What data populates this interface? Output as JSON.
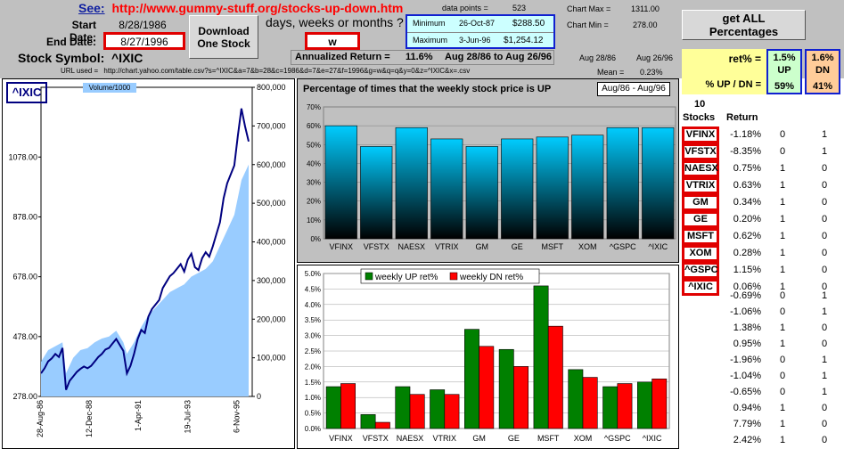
{
  "header": {
    "see_label": "See:",
    "see_link": "http://www.gummy-stuff.org/stocks-up-down.htm",
    "start_label": "Start Date:",
    "start_value": "8/28/1986",
    "end_label": "End Date:",
    "end_value": "8/27/1996",
    "symbol_label": "Stock Symbol:",
    "symbol_value": "^IXIC",
    "download_button": "Download One Stock",
    "period_prompt": "days, weeks or months ?",
    "period_value": "w",
    "data_points_label": "data points =",
    "data_points_value": "523",
    "min_label": "Minimum",
    "min_date": "26-Oct-87",
    "min_value": "$288.50",
    "max_label": "Maximum",
    "max_date": "3-Jun-96",
    "max_value": "$1,254.12",
    "chart_max_label": "Chart Max =",
    "chart_max_value": "1311.00",
    "chart_min_label": "Chart Min =",
    "chart_min_value": "278.00",
    "get_all_button": "get ALL Percentages",
    "annualized_label": "Annualized Return =",
    "annualized_value": "11.6%",
    "annualized_range": "Aug 28/86 to Aug 26/96",
    "col_aug86": "Aug 28/86",
    "col_aug96": "Aug 26/96",
    "mean_label": "Mean =",
    "mean_value": "0.23%",
    "url_label": "URL used =",
    "url_value": "http://chart.yahoo.com/table.csv?s=^IXIC&a=7&b=28&c=1986&d=7&e=27&f=1996&g=w&q=q&y=0&z=^IXIC&x=.csv"
  },
  "summary": {
    "ret_label": "ret% =",
    "up_pct": "1.5%",
    "up_word": "UP",
    "dn_pct": "1.6%",
    "dn_word": "DN",
    "updn_label": "% UP / DN =",
    "up_share": "59%",
    "dn_share": "41%",
    "stocks_count": "10",
    "stocks_header": "Stocks",
    "return_header": "Return"
  },
  "stocks": [
    {
      "name": "VFINX",
      "ret": "-1.18%",
      "up": "0",
      "dn": "1"
    },
    {
      "name": "VFSTX",
      "ret": "-8.35%",
      "up": "0",
      "dn": "1"
    },
    {
      "name": "NAESX",
      "ret": "0.75%",
      "up": "1",
      "dn": "0"
    },
    {
      "name": "VTRIX",
      "ret": "0.63%",
      "up": "1",
      "dn": "0"
    },
    {
      "name": "GM",
      "ret": "0.34%",
      "up": "1",
      "dn": "0"
    },
    {
      "name": "GE",
      "ret": "0.20%",
      "up": "1",
      "dn": "0"
    },
    {
      "name": "MSFT",
      "ret": "0.62%",
      "up": "1",
      "dn": "0"
    },
    {
      "name": "XOM",
      "ret": "0.28%",
      "up": "1",
      "dn": "0"
    },
    {
      "name": "^GSPC",
      "ret": "1.15%",
      "up": "1",
      "dn": "0"
    },
    {
      "name": "^IXIC",
      "ret": "0.06%",
      "up": "1",
      "dn": "0"
    }
  ],
  "extra_rows": [
    {
      "ret": "-0.69%",
      "up": "0",
      "dn": "1"
    },
    {
      "ret": "-1.06%",
      "up": "0",
      "dn": "1"
    },
    {
      "ret": "1.38%",
      "up": "1",
      "dn": "0"
    },
    {
      "ret": "0.95%",
      "up": "1",
      "dn": "0"
    },
    {
      "ret": "-1.96%",
      "up": "0",
      "dn": "1"
    },
    {
      "ret": "-1.04%",
      "up": "0",
      "dn": "1"
    },
    {
      "ret": "-0.65%",
      "up": "0",
      "dn": "1"
    },
    {
      "ret": "0.94%",
      "up": "1",
      "dn": "0"
    },
    {
      "ret": "7.79%",
      "up": "1",
      "dn": "0"
    },
    {
      "ret": "2.42%",
      "up": "1",
      "dn": "0"
    }
  ],
  "chart_data": [
    {
      "type": "line",
      "title": "^IXIC",
      "legend": "Volume/1000",
      "left_axis": [
        278.0,
        478.0,
        678.0,
        878.0,
        1078.0
      ],
      "right_axis": [
        0,
        100000,
        200000,
        300000,
        400000,
        500000,
        600000,
        700000,
        800000
      ],
      "x_ticks": [
        "28-Aug-86",
        "12-Dec-88",
        "1-Apr-91",
        "19-Jul-93",
        "6-Nov-95"
      ],
      "ylim": [
        278,
        1311
      ],
      "price": [
        [
          0,
          355
        ],
        [
          4,
          372
        ],
        [
          8,
          395
        ],
        [
          12,
          405
        ],
        [
          16,
          420
        ],
        [
          20,
          410
        ],
        [
          24,
          440
        ],
        [
          28,
          300
        ],
        [
          32,
          330
        ],
        [
          36,
          345
        ],
        [
          40,
          360
        ],
        [
          44,
          370
        ],
        [
          48,
          378
        ],
        [
          52,
          372
        ],
        [
          56,
          380
        ],
        [
          60,
          395
        ],
        [
          64,
          410
        ],
        [
          68,
          420
        ],
        [
          72,
          435
        ],
        [
          76,
          440
        ],
        [
          80,
          455
        ],
        [
          84,
          470
        ],
        [
          88,
          450
        ],
        [
          92,
          430
        ],
        [
          96,
          355
        ],
        [
          100,
          380
        ],
        [
          104,
          420
        ],
        [
          108,
          470
        ],
        [
          112,
          500
        ],
        [
          116,
          490
        ],
        [
          120,
          545
        ],
        [
          124,
          570
        ],
        [
          128,
          585
        ],
        [
          132,
          600
        ],
        [
          136,
          640
        ],
        [
          140,
          660
        ],
        [
          144,
          680
        ],
        [
          148,
          690
        ],
        [
          152,
          705
        ],
        [
          156,
          720
        ],
        [
          160,
          695
        ],
        [
          164,
          735
        ],
        [
          168,
          755
        ],
        [
          172,
          710
        ],
        [
          176,
          700
        ],
        [
          180,
          740
        ],
        [
          184,
          760
        ],
        [
          188,
          745
        ],
        [
          192,
          780
        ],
        [
          196,
          820
        ],
        [
          200,
          860
        ],
        [
          204,
          940
        ],
        [
          208,
          990
        ],
        [
          212,
          1020
        ],
        [
          216,
          1050
        ],
        [
          220,
          1150
        ],
        [
          224,
          1240
        ],
        [
          228,
          1180
        ],
        [
          232,
          1130
        ]
      ],
      "volume": [
        [
          0,
          90000
        ],
        [
          8,
          120000
        ],
        [
          16,
          130000
        ],
        [
          24,
          140000
        ],
        [
          28,
          60000
        ],
        [
          36,
          100000
        ],
        [
          44,
          120000
        ],
        [
          52,
          125000
        ],
        [
          60,
          140000
        ],
        [
          68,
          150000
        ],
        [
          76,
          155000
        ],
        [
          84,
          170000
        ],
        [
          92,
          140000
        ],
        [
          96,
          110000
        ],
        [
          104,
          140000
        ],
        [
          112,
          180000
        ],
        [
          120,
          210000
        ],
        [
          128,
          230000
        ],
        [
          136,
          250000
        ],
        [
          144,
          270000
        ],
        [
          152,
          280000
        ],
        [
          160,
          290000
        ],
        [
          168,
          310000
        ],
        [
          176,
          320000
        ],
        [
          184,
          330000
        ],
        [
          192,
          350000
        ],
        [
          200,
          390000
        ],
        [
          208,
          430000
        ],
        [
          216,
          470000
        ],
        [
          224,
          560000
        ],
        [
          232,
          600000
        ]
      ]
    },
    {
      "type": "bar",
      "title": "Percentage of times that the weekly stock price is UP",
      "subtitle": "Aug/86 - Aug/96",
      "categories": [
        "VFINX",
        "VFSTX",
        "NAESX",
        "VTRIX",
        "GM",
        "GE",
        "MSFT",
        "XOM",
        "^GSPC",
        "^IXIC"
      ],
      "values": [
        60,
        49,
        59,
        53,
        49,
        53,
        54,
        55,
        59,
        59
      ],
      "ylim": [
        0,
        70
      ],
      "yticks": [
        "0%",
        "10%",
        "20%",
        "30%",
        "40%",
        "50%",
        "60%",
        "70%"
      ]
    },
    {
      "type": "bar",
      "categories": [
        "VFINX",
        "VFSTX",
        "NAESX",
        "VTRIX",
        "GM",
        "GE",
        "MSFT",
        "XOM",
        "^GSPC",
        "^IXIC"
      ],
      "series": [
        {
          "name": "weekly UP ret%",
          "values": [
            1.35,
            0.45,
            1.35,
            1.25,
            3.2,
            2.55,
            4.6,
            1.9,
            1.35,
            1.5
          ]
        },
        {
          "name": "weekly DN ret%",
          "values": [
            1.45,
            0.2,
            1.1,
            1.1,
            2.65,
            2.0,
            3.3,
            1.65,
            1.45,
            1.6
          ]
        }
      ],
      "ylim": [
        0,
        5
      ],
      "yticks": [
        "0.0%",
        "0.5%",
        "1.0%",
        "1.5%",
        "2.0%",
        "2.5%",
        "3.0%",
        "3.5%",
        "4.0%",
        "4.5%",
        "5.0%"
      ],
      "colors": {
        "up": "#008000",
        "dn": "#ff0000"
      }
    }
  ],
  "colors": {
    "red_border": "#e00000",
    "blue_border": "#1020d0",
    "cyan_fill": "#ccffff",
    "yellow_fill": "#ffff99",
    "green_fill": "#ccffcc",
    "orange_fill": "#ffcc99",
    "link_red": "#ff0000"
  }
}
